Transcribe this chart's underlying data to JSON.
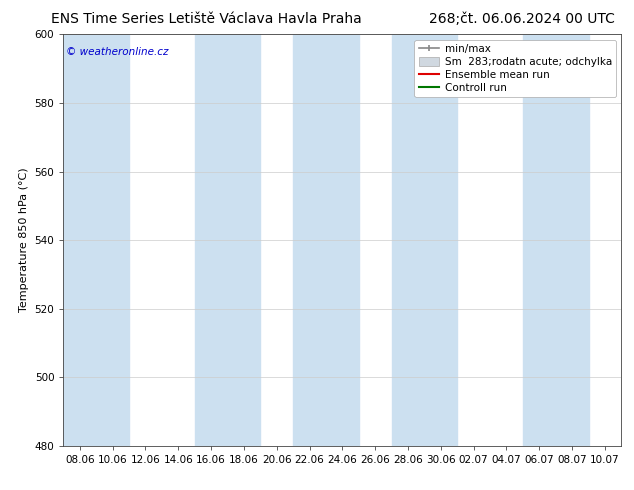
{
  "title_left": "ENS Time Series Letiště Václava Havla Praha",
  "title_right": "268;čt. 06.06.2024 00 UTC",
  "ylabel": "Temperature 850 hPa (°C)",
  "watermark": "© weatheronline.cz",
  "watermark_color": "#0000cc",
  "ylim": [
    480,
    600
  ],
  "yticks": [
    480,
    500,
    520,
    540,
    560,
    580,
    600
  ],
  "xtick_labels": [
    "08.06",
    "10.06",
    "12.06",
    "14.06",
    "16.06",
    "18.06",
    "20.06",
    "22.06",
    "24.06",
    "26.06",
    "28.06",
    "30.06",
    "02.07",
    "04.07",
    "06.07",
    "08.07",
    "10.07"
  ],
  "n_xticks": 17,
  "band_color": "#cce0f0",
  "band_alpha": 1.0,
  "background_color": "#ffffff",
  "grid_color": "#cccccc",
  "legend_entries": [
    {
      "label": "min/max",
      "color": "#aaaaaa",
      "lw": 1.5
    },
    {
      "label": "Sm  283;rodatn acute; odchylka",
      "color": "#cccccc",
      "lw": 6
    },
    {
      "label": "Ensemble mean run",
      "color": "#dd0000",
      "lw": 1.5
    },
    {
      "label": "Controll run",
      "color": "#007700",
      "lw": 1.5
    }
  ],
  "title_fontsize": 10,
  "axis_fontsize": 8,
  "tick_fontsize": 7.5,
  "legend_fontsize": 7.5
}
